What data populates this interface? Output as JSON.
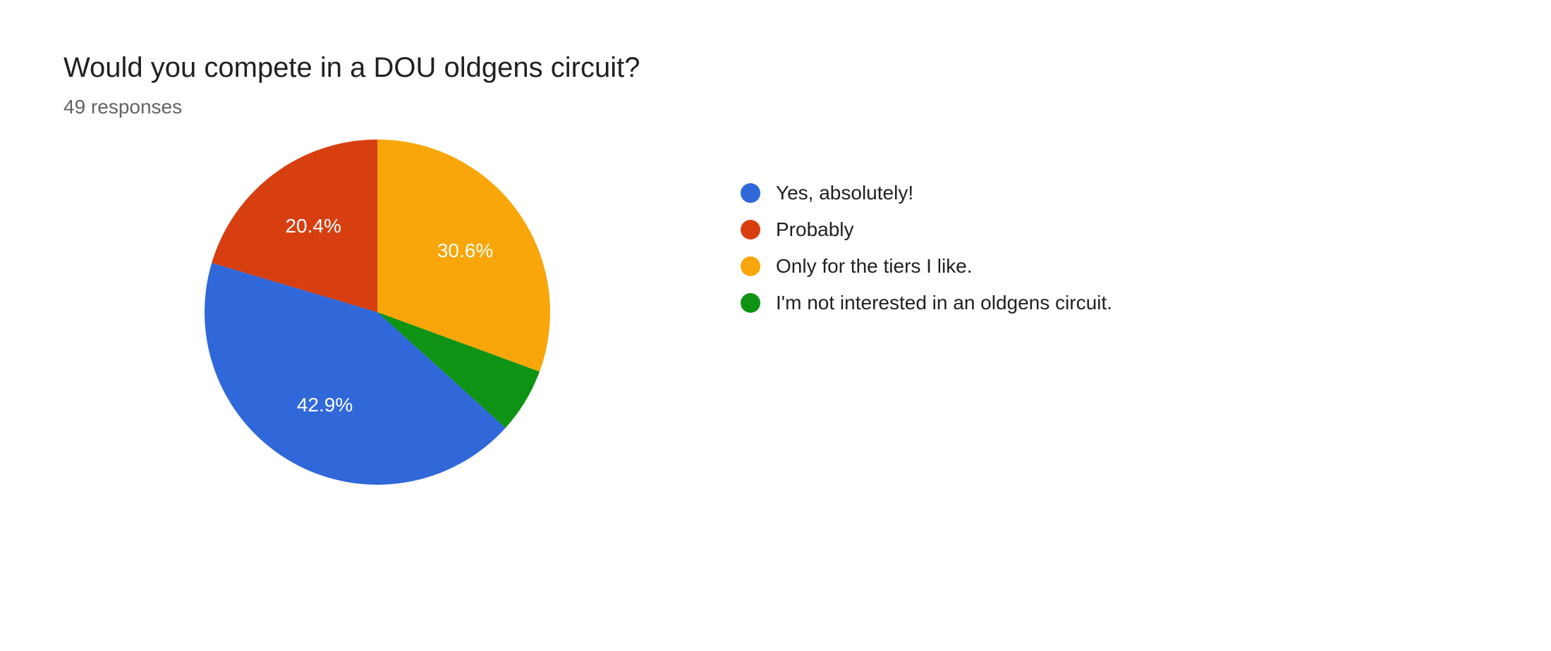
{
  "header": {
    "title": "Would you compete in a DOU oldgens circuit?",
    "subtitle": "49 responses"
  },
  "chart": {
    "type": "pie",
    "radius": 245,
    "start_angle_deg": -90,
    "background_color": "#ffffff",
    "label_fontsize": 28,
    "label_color": "#ffffff",
    "label_radius_ratio": 0.62,
    "min_label_percent": 10,
    "slices": [
      {
        "label": "Only for the tiers I like.",
        "percent": 30.6,
        "color": "#f8a609",
        "display": "30.6%"
      },
      {
        "label": "I'm not interested in an oldgens circuit.",
        "percent": 6.1,
        "color": "#0f9314",
        "display": "6.1%"
      },
      {
        "label": "Yes, absolutely!",
        "percent": 42.9,
        "color": "#3068da",
        "display": "42.9%"
      },
      {
        "label": "Probably",
        "percent": 20.4,
        "color": "#d73f11",
        "display": "20.4%"
      }
    ],
    "legend_order": [
      {
        "label": "Yes, absolutely!",
        "color": "#3068da"
      },
      {
        "label": "Probably",
        "color": "#d73f11"
      },
      {
        "label": "Only for the tiers I like.",
        "color": "#f8a609"
      },
      {
        "label": "I'm not interested in an oldgens circuit.",
        "color": "#0f9314"
      }
    ],
    "legend_fontsize": 28,
    "legend_text_color": "#202124"
  }
}
